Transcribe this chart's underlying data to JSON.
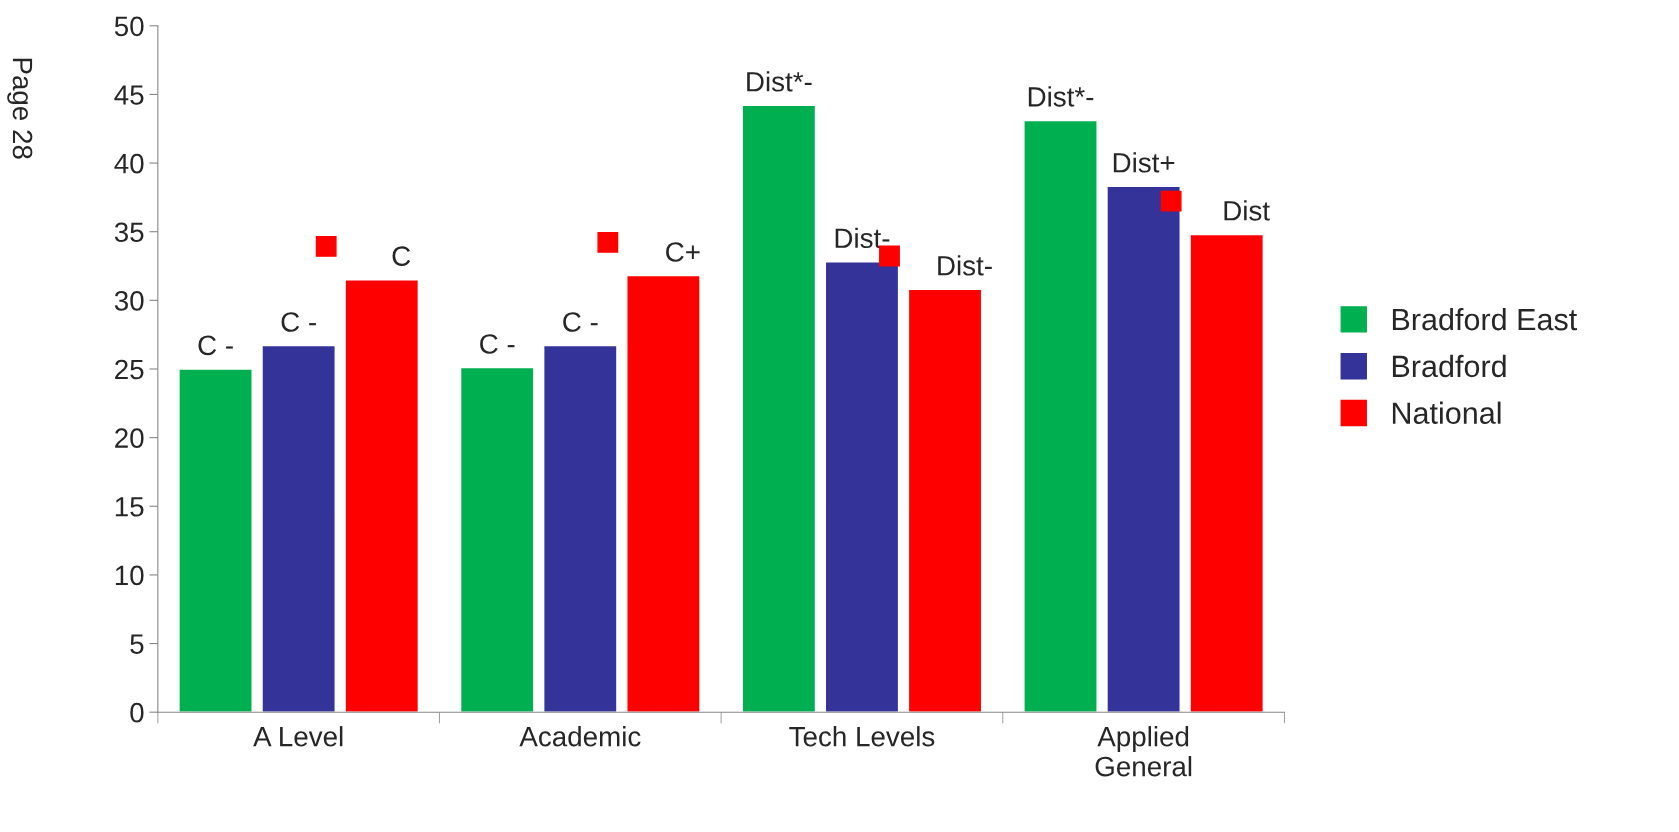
{
  "chart_data": {
    "type": "bar",
    "categories": [
      "A Level",
      "Academic",
      "Tech Levels",
      "Applied\nGeneral"
    ],
    "series": [
      {
        "name": "Bradford East",
        "color": "#00b050",
        "values": [
          25.0,
          25.1,
          44.2,
          43.1
        ],
        "value_labels": [
          "C -",
          "C -",
          "Dist*-",
          "Dist*-"
        ]
      },
      {
        "name": "Bradford",
        "color": "#333399",
        "values": [
          26.7,
          26.7,
          32.8,
          38.3
        ],
        "value_labels": [
          "C -",
          "C -",
          "Dist-",
          "Dist+"
        ]
      },
      {
        "name": "National",
        "color": "#ff0000",
        "values": [
          31.5,
          31.8,
          30.8,
          34.8
        ],
        "value_labels": [
          "C",
          "C+",
          "Dist-",
          "Dist"
        ]
      }
    ],
    "ylim": [
      0,
      50
    ],
    "yticks": [
      0,
      5,
      10,
      15,
      20,
      25,
      30,
      35,
      40,
      45,
      50
    ],
    "grid": false,
    "legend": "right",
    "annotations": [
      "Page 28"
    ]
  }
}
